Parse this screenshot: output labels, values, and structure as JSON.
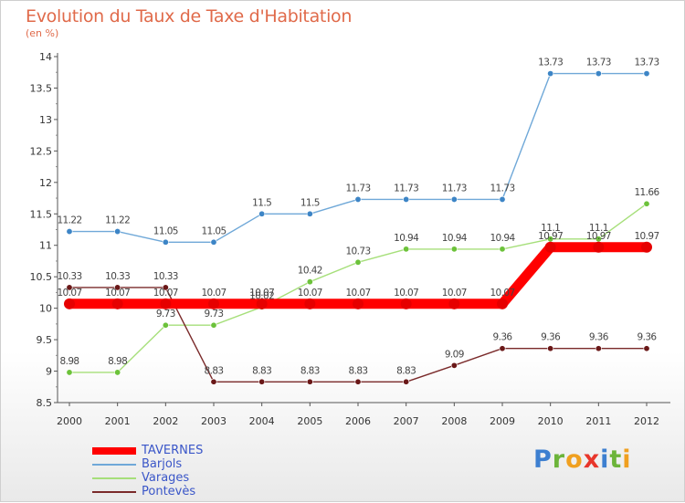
{
  "title": "Evolution du Taux de Taxe d'Habitation",
  "subtitle": "(en %)",
  "brand": {
    "letters": [
      {
        "ch": "P",
        "color": "#3d7fd0"
      },
      {
        "ch": "r",
        "color": "#6cb43a"
      },
      {
        "ch": "o",
        "color": "#f0a020"
      },
      {
        "ch": "x",
        "color": "#e8362b"
      },
      {
        "ch": "i",
        "color": "#3d7fd0"
      },
      {
        "ch": "t",
        "color": "#6cb43a"
      },
      {
        "ch": "i",
        "color": "#f0a020"
      }
    ]
  },
  "chart_data": {
    "type": "line",
    "title": "Evolution du Taux de Taxe d'Habitation",
    "ylabel": "(en %)",
    "xlabel": "",
    "x": [
      "2000",
      "2001",
      "2002",
      "2003",
      "2004",
      "2005",
      "2006",
      "2007",
      "2008",
      "2009",
      "2010",
      "2011",
      "2012"
    ],
    "ylim": [
      8.5,
      14
    ],
    "yticks": [
      "8.5",
      "9",
      "9.5",
      "10",
      "10.5",
      "11",
      "11.5",
      "12",
      "12.5",
      "13",
      "13.5",
      "14"
    ],
    "grid": false,
    "legend_position": "bottom-left",
    "series": [
      {
        "name": "TAVERNES",
        "color": "#ff0000",
        "marker": "#e60000",
        "values": [
          10.07,
          10.07,
          10.07,
          10.07,
          10.07,
          10.07,
          10.07,
          10.07,
          10.07,
          10.07,
          10.97,
          10.97,
          10.97
        ],
        "labels": [
          "10.07",
          "10.07",
          "10.07",
          "10.07",
          "10.07",
          "10.07",
          "10.07",
          "10.07",
          "10.07",
          "10.07",
          "10.97",
          "10.97",
          "10.97"
        ]
      },
      {
        "name": "Barjols",
        "color": "#6fa8d8",
        "marker": "#3d85c6",
        "values": [
          11.22,
          11.22,
          11.05,
          11.05,
          11.5,
          11.5,
          11.73,
          11.73,
          11.73,
          11.73,
          13.73,
          13.73,
          13.73
        ],
        "labels": [
          "11.22",
          "11.22",
          "11.05",
          "11.05",
          "11.5",
          "11.5",
          "11.73",
          "11.73",
          "11.73",
          "11.73",
          "13.73",
          "13.73",
          "13.73"
        ]
      },
      {
        "name": "Varages",
        "color": "#a6df7a",
        "marker": "#6cc23a",
        "values": [
          8.98,
          8.98,
          9.73,
          9.73,
          10.02,
          10.42,
          10.73,
          10.94,
          10.94,
          10.94,
          11.1,
          11.1,
          11.66
        ],
        "labels": [
          "8.98",
          "8.98",
          "9.73",
          "9.73",
          "10.02",
          "10.42",
          "10.73",
          "10.94",
          "10.94",
          "10.94",
          "11.1",
          "11.1",
          "11.66"
        ]
      },
      {
        "name": "Pontevès",
        "color": "#7a2a2a",
        "marker": "#6a1818",
        "values": [
          10.33,
          10.33,
          10.33,
          8.83,
          8.83,
          8.83,
          8.83,
          8.83,
          9.09,
          9.36,
          9.36,
          9.36,
          9.36
        ],
        "labels": [
          "10.33",
          "10.33",
          "10.33",
          "8.83",
          "8.83",
          "8.83",
          "8.83",
          "8.83",
          "9.09",
          "9.36",
          "9.36",
          "9.36",
          "9.36"
        ]
      }
    ]
  }
}
